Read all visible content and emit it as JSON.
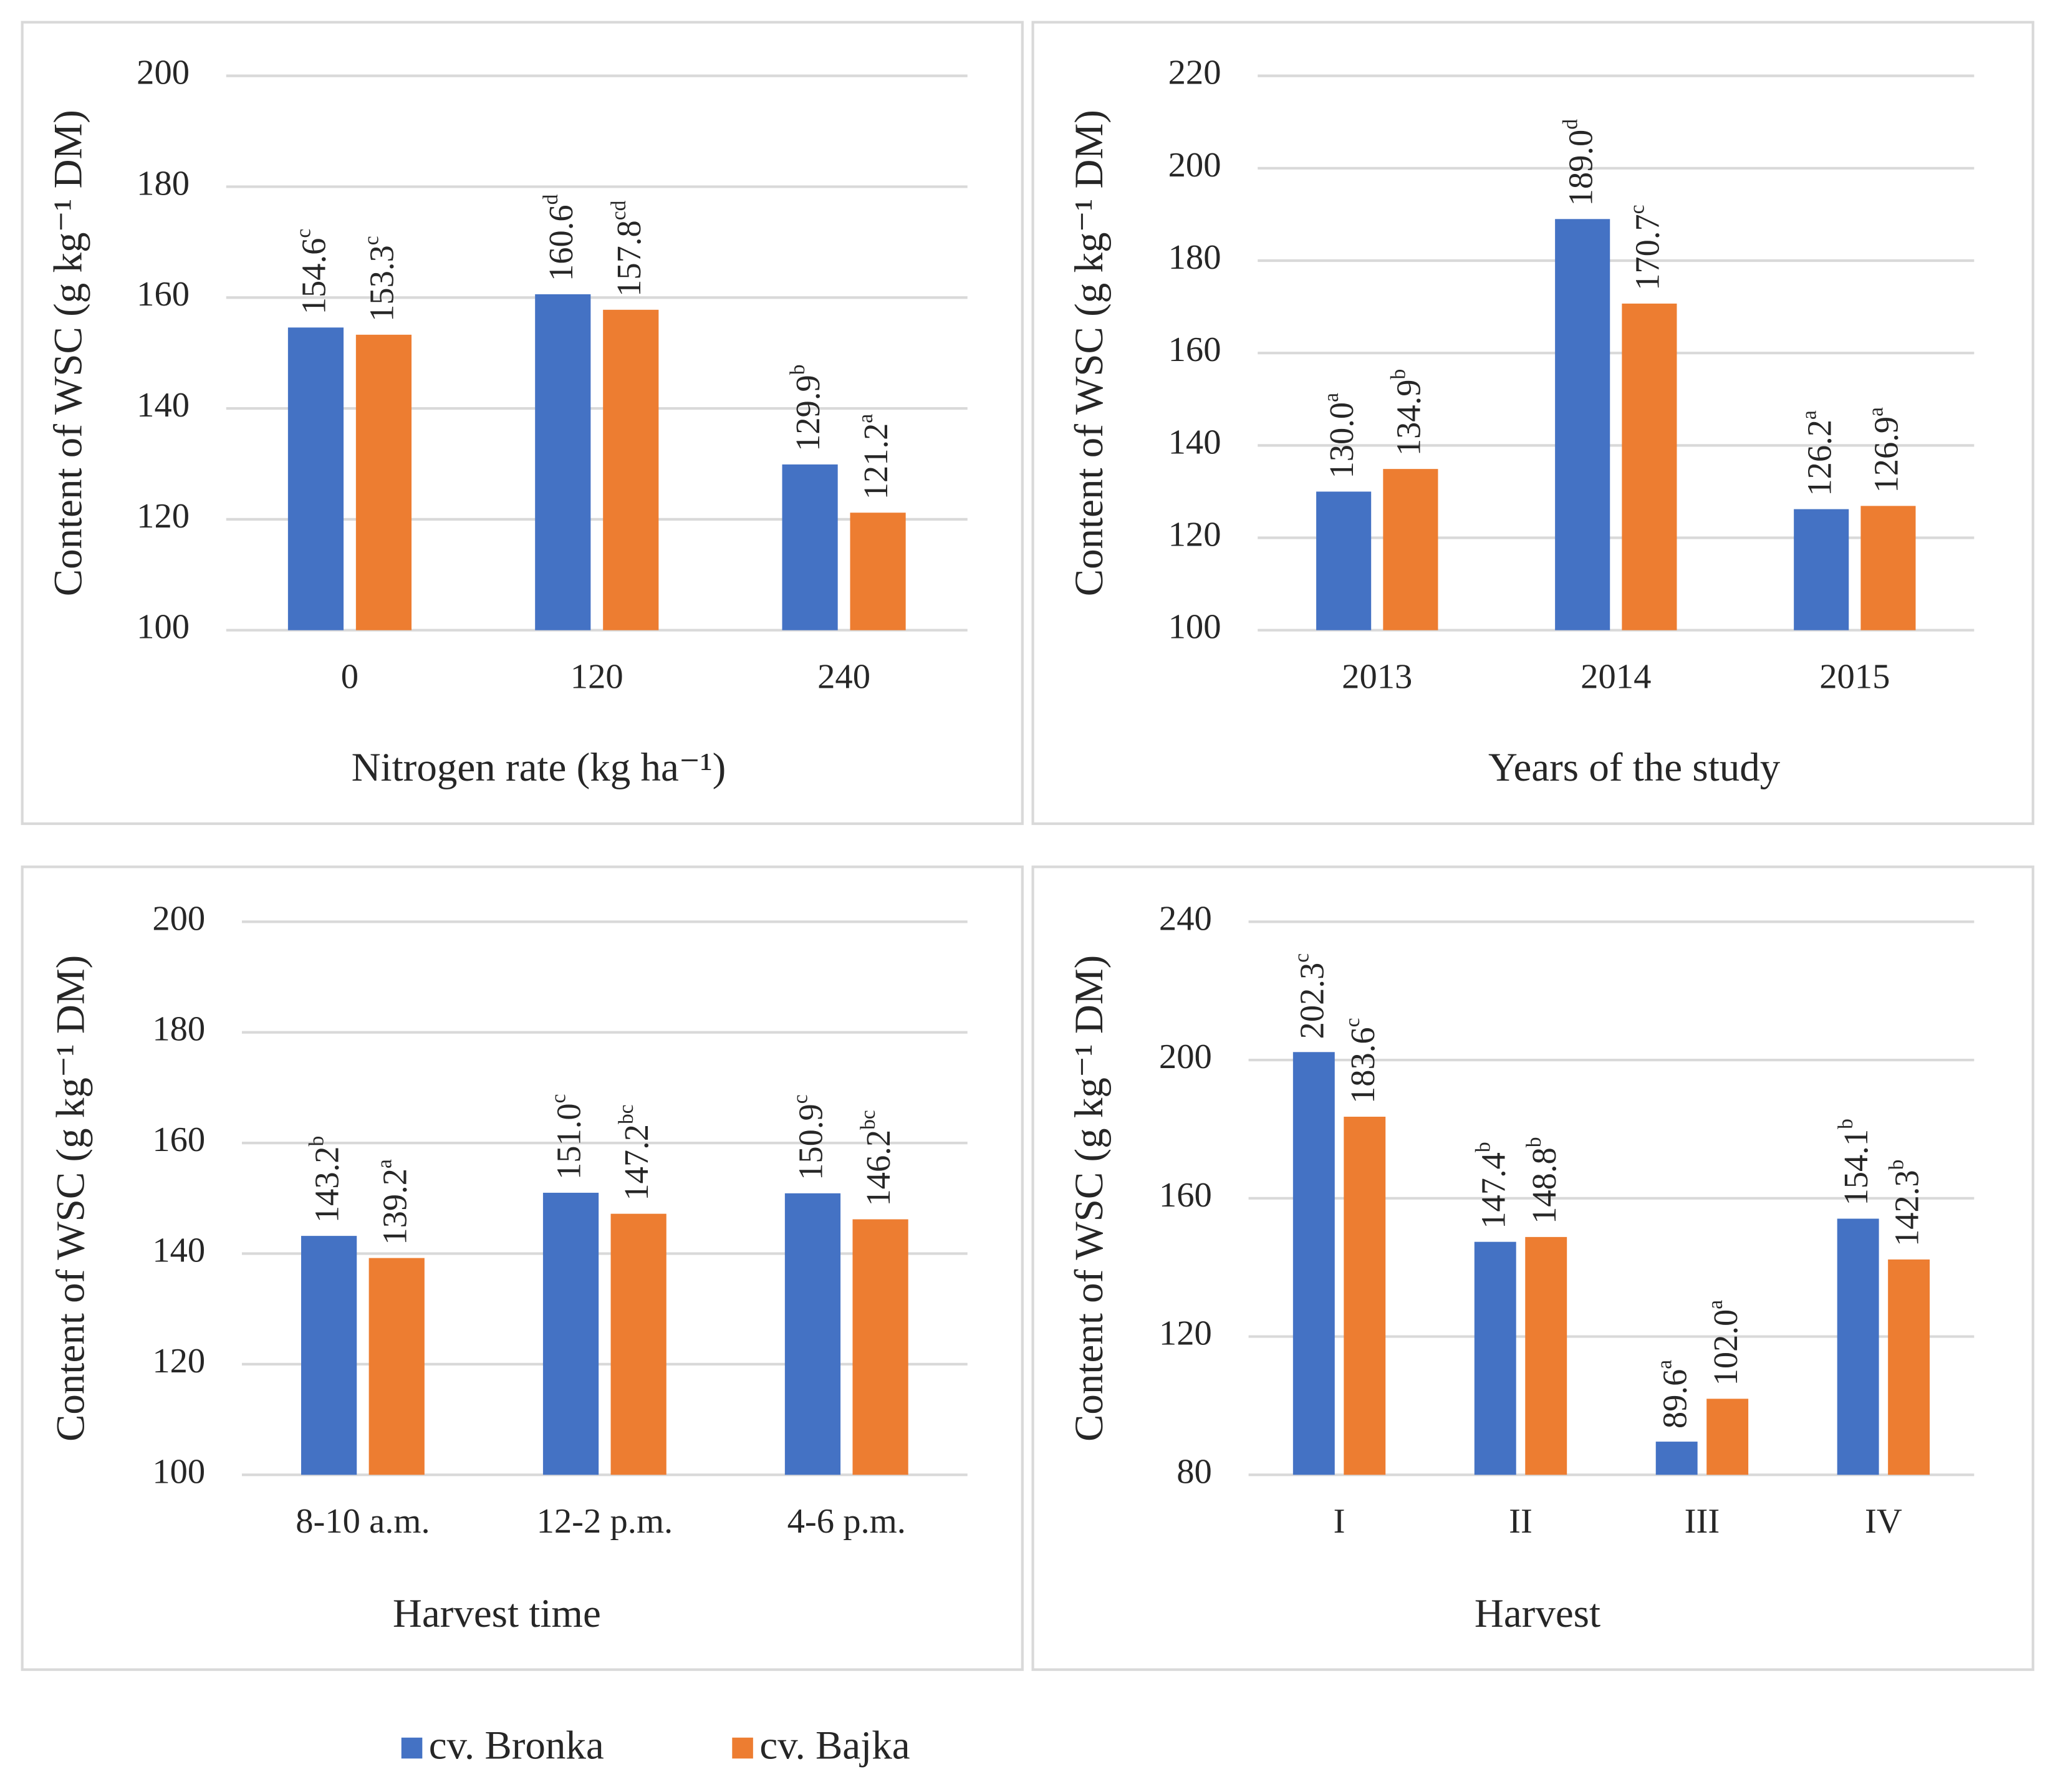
{
  "chart_data": [
    {
      "type": "bar",
      "x_label": "Nitrogen rate (kg ha⁻¹)",
      "y_label": "Content of WSC (g kg⁻¹ DM)",
      "categories": [
        "0",
        "120",
        "240"
      ],
      "series": [
        {
          "name": "cv. Bronka",
          "color": "#4472c4",
          "values": [
            154.6,
            160.6,
            129.9
          ],
          "value_labels": [
            "154.6",
            "160.6",
            "129.9"
          ],
          "letters": [
            "c",
            "d",
            "b"
          ]
        },
        {
          "name": "cv. Bajka",
          "color": "#ed7d31",
          "values": [
            153.3,
            157.8,
            121.2
          ],
          "value_labels": [
            "153.3",
            "157.8",
            "121.2"
          ],
          "letters": [
            "c",
            "cd",
            "a"
          ]
        }
      ],
      "ylim": [
        100,
        200
      ],
      "yticks": [
        100,
        120,
        140,
        160,
        180,
        200
      ],
      "grid": true
    },
    {
      "type": "bar",
      "x_label": "Years of the study",
      "y_label": "Content of WSC (g kg⁻¹ DM)",
      "categories": [
        "2013",
        "2014",
        "2015"
      ],
      "series": [
        {
          "name": "cv. Bronka",
          "color": "#4472c4",
          "values": [
            130.0,
            189.0,
            126.2
          ],
          "value_labels": [
            "130.0",
            "189.0",
            "126.2"
          ],
          "letters": [
            "a",
            "d",
            "a"
          ]
        },
        {
          "name": "cv. Bajka",
          "color": "#ed7d31",
          "values": [
            134.9,
            170.7,
            126.9
          ],
          "value_labels": [
            "134.9",
            "170.7",
            "126.9"
          ],
          "letters": [
            "b",
            "c",
            "a"
          ]
        }
      ],
      "ylim": [
        100,
        220
      ],
      "yticks": [
        100,
        120,
        140,
        160,
        180,
        200,
        220
      ],
      "grid": true
    },
    {
      "type": "bar",
      "x_label": "Harvest time",
      "y_label": "Content of WSC (g kg⁻¹ DM)",
      "categories": [
        "8-10 a.m.",
        "12-2 p.m.",
        "4-6 p.m."
      ],
      "series": [
        {
          "name": "cv. Bronka",
          "color": "#4472c4",
          "values": [
            143.2,
            151.0,
            150.9
          ],
          "value_labels": [
            "143.2",
            "151.0",
            "150.9"
          ],
          "letters": [
            "b",
            "c",
            "c"
          ]
        },
        {
          "name": "cv. Bajka",
          "color": "#ed7d31",
          "values": [
            139.2,
            147.2,
            146.2
          ],
          "value_labels": [
            "139.2",
            "147.2",
            "146.2"
          ],
          "letters": [
            "a",
            "bc",
            "bc"
          ]
        }
      ],
      "ylim": [
        100,
        200
      ],
      "yticks": [
        100,
        120,
        140,
        160,
        180,
        200
      ],
      "grid": true
    },
    {
      "type": "bar",
      "x_label": "Harvest",
      "y_label": "Content of WSC (g kg⁻¹ DM)",
      "categories": [
        "I",
        "II",
        "III",
        "IV"
      ],
      "series": [
        {
          "name": "cv. Bronka",
          "color": "#4472c4",
          "values": [
            202.3,
            147.4,
            89.6,
            154.1
          ],
          "value_labels": [
            "202.3",
            "147.4",
            "89.6",
            "154.1"
          ],
          "letters": [
            "c",
            "b",
            "a",
            "b"
          ]
        },
        {
          "name": "cv. Bajka",
          "color": "#ed7d31",
          "values": [
            183.6,
            148.8,
            102.0,
            142.3
          ],
          "value_labels": [
            "183.6",
            "148.8",
            "102.0",
            "142.3"
          ],
          "letters": [
            "c",
            "b",
            "a",
            "b"
          ]
        }
      ],
      "ylim": [
        80,
        240
      ],
      "yticks": [
        80,
        120,
        160,
        200,
        240
      ],
      "grid": true
    }
  ]
}
